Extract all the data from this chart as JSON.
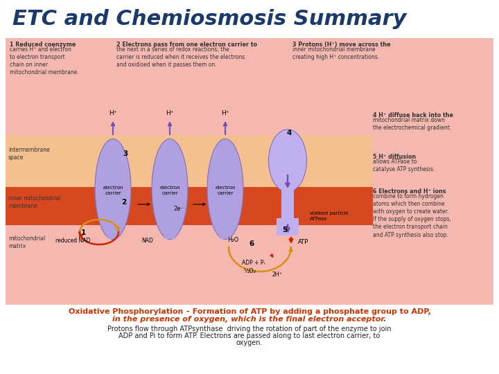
{
  "title": "ETC and Chemiosmosis Summary",
  "title_color": "#1a3a6b",
  "title_fontsize": 22,
  "bg_color": "#ffffff",
  "panel_pink": "#f5b8b0",
  "membrane_color": "#d84820",
  "intermembrane_color": "#f5c090",
  "carrier_color": "#b0a0e0",
  "atpase_color": "#c0b0f0",
  "arrow_orange": "#d89010",
  "arrow_red": "#cc2200",
  "arrow_purple": "#7050b0",
  "text_orange": "#cc3300",
  "text_black": "#222222",
  "text_dark": "#333333",
  "bottom_text1": "Oxidative Phosphorylation – Formation of ATP by adding a phosphate group to ADP,",
  "bottom_text2": "in the presence of oxygen, which is the final electron acceptor.",
  "bottom_text3": "Protons flow through ATPsynthase  driving the rotation of part of the enzyme to join",
  "bottom_text4": "ADP and Pi to form ATP. Electrons are passed along to last electron carrier, to",
  "bottom_text5": "oxygen.",
  "label1_bold": "1 Reduced coenzyme",
  "label1_body": "carries H⁺ and electron\nto electron transport\nchain on inner\nmitochondrial membrane.",
  "label2_bold": "2 Electrons pass from one electron carrier to",
  "label2_body": "the next in a series of redox reactions; the\ncarrier is reduced when it receives the electrons\nand oxidised when it passes them on.",
  "label3_bold": "3 Protons (H⁺) move across the",
  "label3_body": "inner mitochondrial membrane\ncreating high H⁺ concentrations.",
  "label4_bold": "4 H⁺ diffuse back into the",
  "label4_body": "mitochondrial matrix down\nthe electrochemical gradient.",
  "label5_bold": "5 H⁺ diffusion",
  "label5_body": "allows ATPase to\ncatalyse ATP synthesis.",
  "label6_bold": "6 Electrons and H⁺ ions",
  "label6_body": "combine to form hydrogen\natoms which then combine\nwith oxygen to create water.\nIf the supply of oxygen stops,\nthe electron transport chain\nand ATP synthesis also stop."
}
